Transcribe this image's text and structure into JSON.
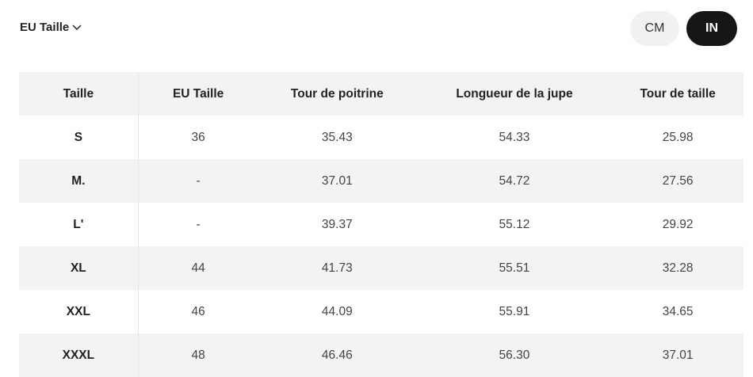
{
  "size_selector": "EU Taille",
  "units": [
    "CM",
    "IN"
  ],
  "table": {
    "header": [
      "Taille",
      "EU Taille",
      "Tour de poitrine",
      "Longueur de la jupe",
      "Tour de taille"
    ],
    "rows": [
      [
        "S",
        "36",
        "35.43",
        "54.33",
        "25.98"
      ],
      [
        "M.",
        "-",
        "37.01",
        "54.72",
        "27.56"
      ],
      [
        "L'",
        "-",
        "39.37",
        "55.12",
        "29.92"
      ],
      [
        "XL",
        "44",
        "41.73",
        "55.51",
        "32.28"
      ],
      [
        "XXL",
        "46",
        "44.09",
        "55.91",
        "34.65"
      ],
      [
        "XXXL",
        "48",
        "46.46",
        "56.30",
        "37.01"
      ]
    ]
  }
}
